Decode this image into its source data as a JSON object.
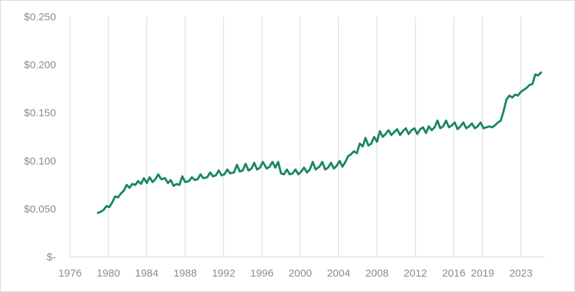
{
  "chart_data": {
    "type": "line",
    "title": "",
    "xlabel": "",
    "ylabel": "",
    "x_axis": {
      "min": 1976,
      "max": 2025.5,
      "ticks": [
        1976,
        1980,
        1984,
        1988,
        1992,
        1996,
        2000,
        2004,
        2008,
        2012,
        2016,
        2019,
        2023
      ],
      "tick_labels": [
        "1976",
        "1980",
        "1984",
        "1988",
        "1992",
        "1996",
        "2000",
        "2004",
        "2008",
        "2012",
        "2016",
        "2019",
        "2023"
      ]
    },
    "y_axis": {
      "min": 0,
      "max": 0.25,
      "ticks": [
        0,
        0.05,
        0.1,
        0.15,
        0.2,
        0.25
      ],
      "tick_labels": [
        "$-",
        "$0.050",
        "$0.100",
        "$0.150",
        "$0.200",
        "$0.250"
      ]
    },
    "grid": {
      "vertical": true,
      "horizontal": false
    },
    "legend": "none",
    "series": [
      {
        "color": "#17875f",
        "points": [
          [
            1978.9,
            0.046
          ],
          [
            1979.2,
            0.047
          ],
          [
            1979.5,
            0.049
          ],
          [
            1979.8,
            0.053
          ],
          [
            1980.1,
            0.052
          ],
          [
            1980.4,
            0.057
          ],
          [
            1980.7,
            0.063
          ],
          [
            1981.0,
            0.062
          ],
          [
            1981.3,
            0.066
          ],
          [
            1981.6,
            0.069
          ],
          [
            1981.9,
            0.075
          ],
          [
            1982.2,
            0.072
          ],
          [
            1982.5,
            0.076
          ],
          [
            1982.8,
            0.075
          ],
          [
            1983.1,
            0.079
          ],
          [
            1983.4,
            0.076
          ],
          [
            1983.7,
            0.082
          ],
          [
            1984.0,
            0.077
          ],
          [
            1984.3,
            0.083
          ],
          [
            1984.6,
            0.078
          ],
          [
            1984.9,
            0.081
          ],
          [
            1985.2,
            0.086
          ],
          [
            1985.5,
            0.081
          ],
          [
            1985.9,
            0.082
          ],
          [
            1986.2,
            0.077
          ],
          [
            1986.5,
            0.08
          ],
          [
            1986.8,
            0.074
          ],
          [
            1987.1,
            0.076
          ],
          [
            1987.4,
            0.075
          ],
          [
            1987.7,
            0.084
          ],
          [
            1988.0,
            0.078
          ],
          [
            1988.4,
            0.079
          ],
          [
            1988.7,
            0.083
          ],
          [
            1989.0,
            0.08
          ],
          [
            1989.3,
            0.081
          ],
          [
            1989.6,
            0.086
          ],
          [
            1989.9,
            0.082
          ],
          [
            1990.3,
            0.083
          ],
          [
            1990.6,
            0.088
          ],
          [
            1990.9,
            0.084
          ],
          [
            1991.2,
            0.085
          ],
          [
            1991.5,
            0.09
          ],
          [
            1991.8,
            0.085
          ],
          [
            1992.1,
            0.086
          ],
          [
            1992.4,
            0.091
          ],
          [
            1992.7,
            0.087
          ],
          [
            1993.1,
            0.088
          ],
          [
            1993.4,
            0.096
          ],
          [
            1993.7,
            0.089
          ],
          [
            1994.0,
            0.09
          ],
          [
            1994.3,
            0.097
          ],
          [
            1994.6,
            0.09
          ],
          [
            1994.9,
            0.092
          ],
          [
            1995.2,
            0.098
          ],
          [
            1995.5,
            0.091
          ],
          [
            1995.8,
            0.093
          ],
          [
            1996.1,
            0.099
          ],
          [
            1996.5,
            0.092
          ],
          [
            1996.8,
            0.094
          ],
          [
            1997.1,
            0.099
          ],
          [
            1997.4,
            0.093
          ],
          [
            1997.7,
            0.099
          ],
          [
            1998.0,
            0.087
          ],
          [
            1998.3,
            0.086
          ],
          [
            1998.6,
            0.091
          ],
          [
            1998.9,
            0.086
          ],
          [
            1999.2,
            0.087
          ],
          [
            1999.5,
            0.091
          ],
          [
            1999.8,
            0.086
          ],
          [
            2000.1,
            0.089
          ],
          [
            2000.4,
            0.093
          ],
          [
            2000.7,
            0.088
          ],
          [
            2001.0,
            0.091
          ],
          [
            2001.3,
            0.099
          ],
          [
            2001.6,
            0.091
          ],
          [
            2002.0,
            0.094
          ],
          [
            2002.3,
            0.099
          ],
          [
            2002.6,
            0.091
          ],
          [
            2002.9,
            0.093
          ],
          [
            2003.2,
            0.098
          ],
          [
            2003.5,
            0.092
          ],
          [
            2003.8,
            0.095
          ],
          [
            2004.1,
            0.1
          ],
          [
            2004.4,
            0.094
          ],
          [
            2004.7,
            0.099
          ],
          [
            2005.0,
            0.105
          ],
          [
            2005.3,
            0.107
          ],
          [
            2005.6,
            0.11
          ],
          [
            2005.9,
            0.108
          ],
          [
            2006.2,
            0.118
          ],
          [
            2006.5,
            0.115
          ],
          [
            2006.8,
            0.124
          ],
          [
            2007.1,
            0.116
          ],
          [
            2007.4,
            0.118
          ],
          [
            2007.7,
            0.125
          ],
          [
            2008.0,
            0.12
          ],
          [
            2008.3,
            0.131
          ],
          [
            2008.6,
            0.125
          ],
          [
            2008.9,
            0.128
          ],
          [
            2009.2,
            0.132
          ],
          [
            2009.5,
            0.127
          ],
          [
            2009.8,
            0.13
          ],
          [
            2010.1,
            0.133
          ],
          [
            2010.4,
            0.127
          ],
          [
            2010.7,
            0.131
          ],
          [
            2011.0,
            0.134
          ],
          [
            2011.3,
            0.128
          ],
          [
            2011.6,
            0.132
          ],
          [
            2011.9,
            0.134
          ],
          [
            2012.2,
            0.128
          ],
          [
            2012.5,
            0.133
          ],
          [
            2012.8,
            0.135
          ],
          [
            2013.1,
            0.129
          ],
          [
            2013.4,
            0.136
          ],
          [
            2013.7,
            0.132
          ],
          [
            2014.0,
            0.135
          ],
          [
            2014.3,
            0.142
          ],
          [
            2014.6,
            0.134
          ],
          [
            2014.9,
            0.136
          ],
          [
            2015.2,
            0.142
          ],
          [
            2015.5,
            0.135
          ],
          [
            2015.8,
            0.137
          ],
          [
            2016.1,
            0.14
          ],
          [
            2016.4,
            0.133
          ],
          [
            2016.7,
            0.136
          ],
          [
            2017.0,
            0.14
          ],
          [
            2017.3,
            0.134
          ],
          [
            2017.6,
            0.136
          ],
          [
            2017.9,
            0.139
          ],
          [
            2018.2,
            0.134
          ],
          [
            2018.5,
            0.136
          ],
          [
            2018.8,
            0.14
          ],
          [
            2019.1,
            0.134
          ],
          [
            2019.4,
            0.135
          ],
          [
            2019.7,
            0.136
          ],
          [
            2020.0,
            0.135
          ],
          [
            2020.3,
            0.137
          ],
          [
            2020.6,
            0.14
          ],
          [
            2020.9,
            0.142
          ],
          [
            2021.2,
            0.152
          ],
          [
            2021.5,
            0.164
          ],
          [
            2021.8,
            0.168
          ],
          [
            2022.1,
            0.166
          ],
          [
            2022.4,
            0.169
          ],
          [
            2022.7,
            0.168
          ],
          [
            2023.0,
            0.172
          ],
          [
            2023.3,
            0.174
          ],
          [
            2023.6,
            0.176
          ],
          [
            2023.9,
            0.179
          ],
          [
            2024.2,
            0.18
          ],
          [
            2024.5,
            0.19
          ],
          [
            2024.8,
            0.189
          ],
          [
            2025.1,
            0.192
          ]
        ]
      }
    ]
  }
}
